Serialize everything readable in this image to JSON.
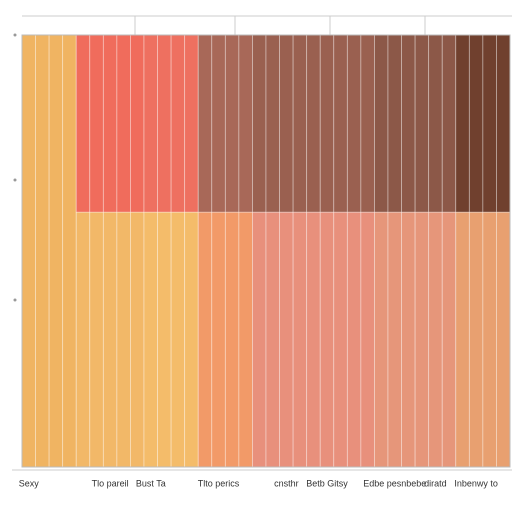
{
  "chart_data": {
    "type": "stacked-bar",
    "categories": [
      "Sexy",
      null,
      null,
      null,
      null,
      null,
      "Tlo pareil",
      null,
      null,
      "Bust Ta",
      null,
      null,
      null,
      null,
      "Tlto perics",
      null,
      null,
      null,
      null,
      "cnsthr",
      null,
      null,
      "Betb Gitsy",
      null,
      null,
      null,
      null,
      "Edbe pesnbebe",
      null,
      null,
      "diratd",
      null,
      null,
      "Inbenwy to",
      null,
      null
    ],
    "series": [
      {
        "values": [
          100,
          100,
          100,
          100,
          59,
          59,
          59,
          59,
          59,
          59,
          59,
          59,
          59,
          59,
          59,
          59,
          59,
          59,
          59,
          59,
          59,
          59,
          59,
          59,
          59,
          59,
          59,
          59,
          59,
          59,
          59,
          59,
          59,
          59,
          59,
          59
        ],
        "colors": [
          "#f0b462",
          "#f0b462",
          "#f0b462",
          "#f0b462",
          "#f2b868",
          "#f2b868",
          "#f2b868",
          "#f2b868",
          "#f2b868",
          "#f4bc6a",
          "#f4bc6a",
          "#f4bc6a",
          "#f4bc6a",
          "#f29a68",
          "#f29a68",
          "#f29a68",
          "#f29a68",
          "#e8907c",
          "#e8907c",
          "#e8907c",
          "#e8907c",
          "#e8907c",
          "#e8907c",
          "#e8907c",
          "#e8907c",
          "#e8907c",
          "#e6967a",
          "#e6967a",
          "#e6967a",
          "#e6967a",
          "#e6967a",
          "#e6967a",
          "#e8a070",
          "#e8a070",
          "#e8a070",
          "#e8a070"
        ]
      },
      {
        "values": [
          0,
          0,
          0,
          0,
          41,
          41,
          41,
          41,
          41,
          41,
          41,
          41,
          41,
          41,
          41,
          41,
          41,
          41,
          41,
          41,
          41,
          41,
          41,
          41,
          41,
          41,
          41,
          41,
          41,
          41,
          41,
          41,
          41,
          41,
          41,
          41
        ],
        "colors": [
          "#f0b462",
          "#f0b462",
          "#f0b462",
          "#f0b462",
          "#f06c5c",
          "#f06c5c",
          "#f06c5c",
          "#f06c5c",
          "#f06c5c",
          "#ee7060",
          "#ee7060",
          "#ee7060",
          "#ee7060",
          "#a86858",
          "#a86858",
          "#a86858",
          "#a86858",
          "#9a6050",
          "#9a6050",
          "#9a6050",
          "#9a6050",
          "#9a6050",
          "#9a6050",
          "#9a6050",
          "#9a6050",
          "#9a6050",
          "#8c5848",
          "#8c5848",
          "#8c5848",
          "#8c5848",
          "#8c5848",
          "#8c5848",
          "#70402e",
          "#70402e",
          "#70402e",
          "#70402e"
        ]
      }
    ],
    "ylim": [
      0,
      100
    ]
  }
}
